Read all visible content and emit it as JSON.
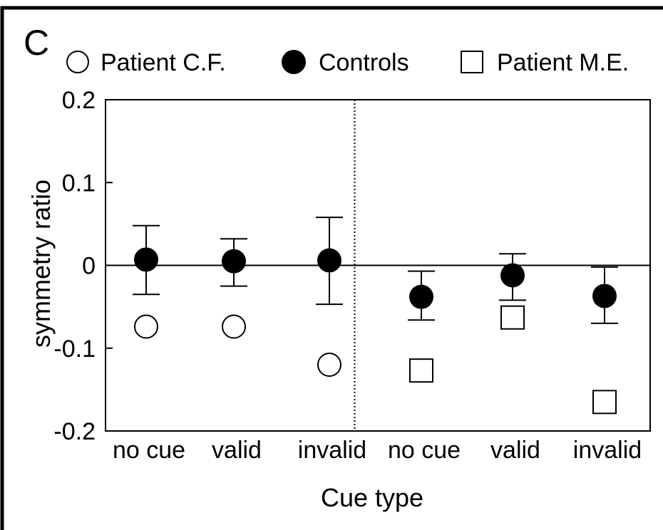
{
  "panel_label": "C",
  "legend": [
    {
      "marker": "open-circle",
      "label": "Patient C.F."
    },
    {
      "marker": "filled-circle",
      "label": "Controls"
    },
    {
      "marker": "open-square",
      "label": "Patient M.E."
    }
  ],
  "chart_data": {
    "type": "scatter",
    "title": "",
    "xlabel": "Cue type",
    "ylabel": "symmetry ratio",
    "ylim": [
      -0.2,
      0.2
    ],
    "yticks": [
      0.2,
      0.1,
      0,
      -0.1,
      -0.2
    ],
    "ytick_labels": [
      "0.2",
      "0.1",
      "0",
      "-0.1",
      "-0.2"
    ],
    "categories": [
      "no cue",
      "valid",
      "invalid",
      "no cue",
      "valid",
      "invalid"
    ],
    "zero_line": true,
    "divider_after_category": 3,
    "series": [
      {
        "name": "Controls",
        "marker": "filled-circle",
        "points": [
          {
            "x": 1,
            "y": 0.007,
            "err_low": -0.035,
            "err_high": 0.048
          },
          {
            "x": 2,
            "y": 0.005,
            "err_low": -0.025,
            "err_high": 0.032
          },
          {
            "x": 3,
            "y": 0.006,
            "err_low": -0.047,
            "err_high": 0.058
          },
          {
            "x": 4,
            "y": -0.038,
            "err_low": -0.066,
            "err_high": -0.007
          },
          {
            "x": 5,
            "y": -0.012,
            "err_low": -0.042,
            "err_high": 0.014
          },
          {
            "x": 6,
            "y": -0.037,
            "err_low": -0.07,
            "err_high": -0.002
          }
        ]
      },
      {
        "name": "Patient C.F.",
        "marker": "open-circle",
        "points": [
          {
            "x": 1,
            "y": -0.074
          },
          {
            "x": 2,
            "y": -0.074
          },
          {
            "x": 3,
            "y": -0.12
          }
        ]
      },
      {
        "name": "Patient M.E.",
        "marker": "open-square",
        "points": [
          {
            "x": 4,
            "y": -0.127
          },
          {
            "x": 5,
            "y": -0.063
          },
          {
            "x": 6,
            "y": -0.165
          }
        ]
      }
    ]
  }
}
